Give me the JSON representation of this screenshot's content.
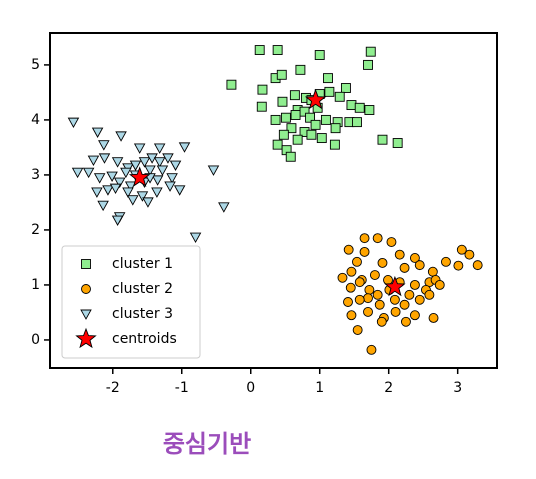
{
  "chart_data": {
    "type": "scatter",
    "title": "중심기반",
    "xlim": [
      -2.91,
      3.57
    ],
    "ylim": [
      -0.51,
      5.58
    ],
    "xticks": [
      -2,
      -1,
      0,
      1,
      2,
      3
    ],
    "yticks": [
      0,
      1,
      2,
      3,
      4,
      5
    ],
    "legend": "lower left",
    "series": [
      {
        "name": "cluster 1",
        "color": "#90ee90",
        "marker": "square",
        "x": [
          0.13,
          0.39,
          1.0,
          1.74,
          0.72,
          1.7,
          -0.28,
          0.17,
          0.36,
          0.45,
          1.12,
          1.38,
          0.64,
          0.8,
          0.88,
          1.0,
          1.14,
          1.29,
          0.16,
          0.46,
          0.68,
          0.78,
          0.97,
          1.46,
          1.58,
          1.72,
          0.51,
          0.65,
          0.86,
          1.09,
          1.26,
          1.43,
          0.59,
          0.78,
          0.94,
          1.23,
          0.39,
          0.68,
          0.88,
          1.22,
          1.91,
          2.13,
          0.52,
          0.58,
          1.03,
          1.54,
          0.36,
          0.48
        ],
        "y": [
          5.27,
          5.27,
          5.18,
          5.24,
          4.91,
          5.0,
          4.64,
          4.55,
          4.76,
          4.82,
          4.76,
          4.58,
          4.45,
          4.4,
          4.36,
          4.47,
          4.51,
          4.42,
          4.24,
          4.33,
          4.18,
          4.15,
          4.22,
          4.27,
          4.22,
          4.18,
          4.04,
          4.09,
          4.04,
          4.0,
          3.96,
          3.96,
          3.85,
          3.78,
          3.91,
          3.85,
          3.55,
          3.64,
          3.73,
          3.55,
          3.64,
          3.58,
          3.45,
          3.33,
          3.67,
          3.96,
          4.0,
          3.73
        ]
      },
      {
        "name": "cluster 2",
        "color": "#ffa500",
        "marker": "circle",
        "x": [
          1.65,
          1.84,
          2.04,
          1.42,
          1.65,
          2.16,
          2.38,
          3.06,
          3.17,
          1.54,
          1.91,
          2.23,
          2.45,
          2.64,
          2.83,
          3.29,
          3.01,
          1.33,
          1.46,
          1.61,
          1.8,
          1.99,
          2.16,
          2.38,
          2.59,
          2.68,
          2.54,
          1.45,
          1.72,
          1.84,
          2.01,
          2.3,
          1.7,
          1.41,
          1.58,
          1.87,
          2.09,
          2.23,
          2.45,
          2.59,
          1.46,
          1.7,
          1.93,
          2.1,
          2.38,
          2.65,
          1.55,
          1.9,
          2.25,
          1.75,
          1.58,
          2.74
        ],
        "y": [
          1.85,
          1.85,
          1.78,
          1.64,
          1.6,
          1.55,
          1.49,
          1.64,
          1.55,
          1.42,
          1.4,
          1.31,
          1.36,
          1.24,
          1.42,
          1.36,
          1.35,
          1.13,
          1.24,
          1.09,
          1.18,
          1.09,
          1.05,
          1.0,
          1.05,
          1.09,
          0.91,
          0.95,
          0.91,
          0.82,
          0.91,
          0.82,
          0.76,
          0.69,
          0.73,
          0.64,
          0.73,
          0.64,
          0.73,
          0.82,
          0.45,
          0.51,
          0.4,
          0.51,
          0.45,
          0.4,
          0.18,
          0.33,
          0.33,
          -0.18,
          1.05,
          1.0
        ]
      },
      {
        "name": "cluster 3",
        "color": "#add8e6",
        "marker": "triangle_down",
        "x": [
          -2.57,
          -2.22,
          -1.88,
          -2.13,
          -1.61,
          -1.32,
          -0.96,
          -2.51,
          -2.28,
          -2.12,
          -1.93,
          -1.78,
          -1.54,
          -1.43,
          -1.32,
          -1.2,
          -1.09,
          -2.35,
          -2.19,
          -2.01,
          -1.81,
          -1.67,
          -1.46,
          -1.28,
          -1.14,
          -1.9,
          -1.74,
          -1.54,
          -1.35,
          -0.54,
          -2.23,
          -2.07,
          -1.96,
          -1.78,
          -1.57,
          -1.36,
          -1.17,
          -1.03,
          -2.14,
          -1.71,
          -1.49,
          -0.39,
          -1.9,
          -1.93,
          -0.8,
          -1.46,
          -1.67
        ],
        "y": [
          3.96,
          3.78,
          3.71,
          3.55,
          3.49,
          3.49,
          3.51,
          3.05,
          3.27,
          3.31,
          3.24,
          3.13,
          3.24,
          3.31,
          3.24,
          3.31,
          3.18,
          3.05,
          2.95,
          2.98,
          3.05,
          3.0,
          3.09,
          3.09,
          2.95,
          2.87,
          2.8,
          2.87,
          2.91,
          3.09,
          2.69,
          2.73,
          2.76,
          2.69,
          2.62,
          2.69,
          2.8,
          2.73,
          2.45,
          2.55,
          2.51,
          2.42,
          2.24,
          2.18,
          1.87,
          2.95,
          3.18
        ]
      },
      {
        "name": "centroids",
        "color": "#ff0000",
        "marker": "star",
        "x": [
          0.94,
          2.09,
          -1.61
        ],
        "y": [
          4.36,
          0.96,
          2.95
        ]
      }
    ]
  }
}
